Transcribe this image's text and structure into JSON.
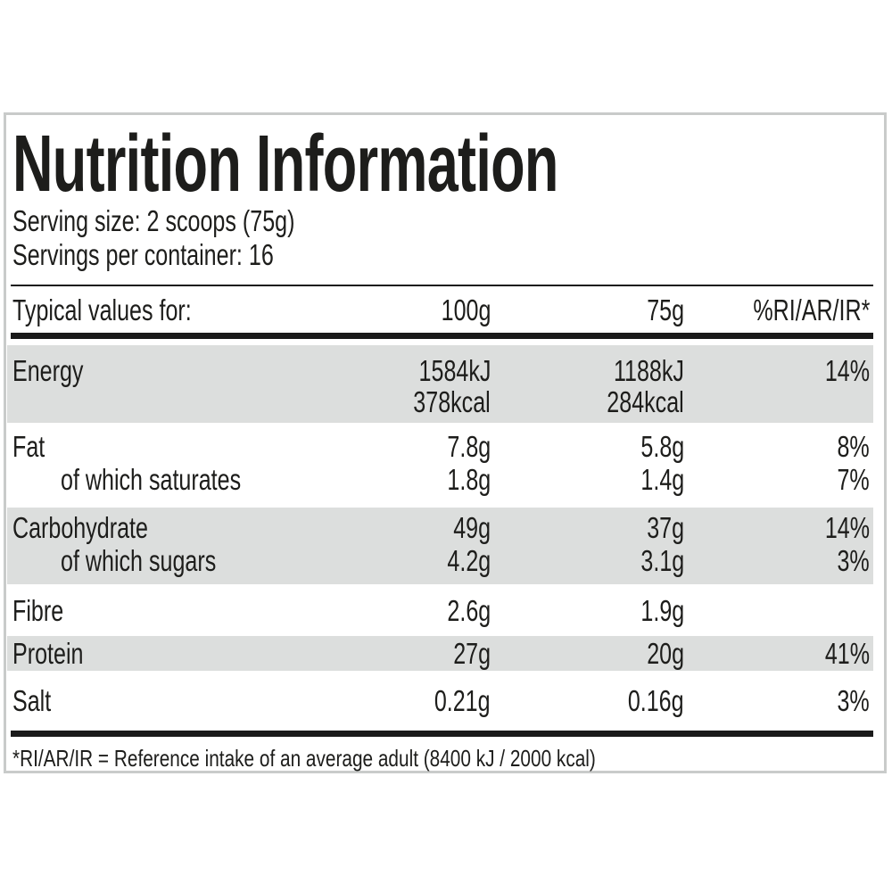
{
  "label": {
    "title": "Nutrition Information",
    "serving_size": "Serving size: 2 scoops (75g)",
    "servings_per_container": "Servings per container: 16",
    "footnote": "*RI/AR/IR = Reference intake of an average adult (8400 kJ / 2000 kcal)"
  },
  "table": {
    "columns": [
      "Typical values for:",
      "100g",
      "75g",
      "%RI/AR/IR*"
    ],
    "groups": [
      {
        "shaded": true,
        "lines": [
          {
            "label": "Energy",
            "per100": "1584kJ",
            "per75": "1188kJ",
            "ri": "14%"
          },
          {
            "label": "",
            "per100": "378kcal",
            "per75": "284kcal",
            "ri": ""
          }
        ]
      },
      {
        "shaded": false,
        "lines": [
          {
            "label": "Fat",
            "per100": "7.8g",
            "per75": "5.8g",
            "ri": "8%"
          },
          {
            "label": "of which saturates",
            "per100": "1.8g",
            "per75": "1.4g",
            "ri": "7%"
          }
        ]
      },
      {
        "shaded": true,
        "lines": [
          {
            "label": "Carbohydrate",
            "per100": "49g",
            "per75": "37g",
            "ri": "14%"
          },
          {
            "label": "of which sugars",
            "per100": "4.2g",
            "per75": "3.1g",
            "ri": "3%"
          }
        ]
      },
      {
        "shaded": false,
        "lines": [
          {
            "label": "Fibre",
            "per100": "2.6g",
            "per75": "1.9g",
            "ri": ""
          }
        ]
      },
      {
        "shaded": true,
        "lines": [
          {
            "label": "Protein",
            "per100": "27g",
            "per75": "20g",
            "ri": "41%"
          }
        ]
      },
      {
        "shaded": false,
        "lines": [
          {
            "label": "Salt",
            "per100": "0.21g",
            "per75": "0.16g",
            "ri": "3%"
          }
        ]
      }
    ]
  },
  "colors": {
    "text": "#1d1d1b",
    "row_shade": "#dcdedd",
    "rule": "#1a1a1a",
    "card_border": "#c9cbca",
    "background": "#ffffff"
  }
}
